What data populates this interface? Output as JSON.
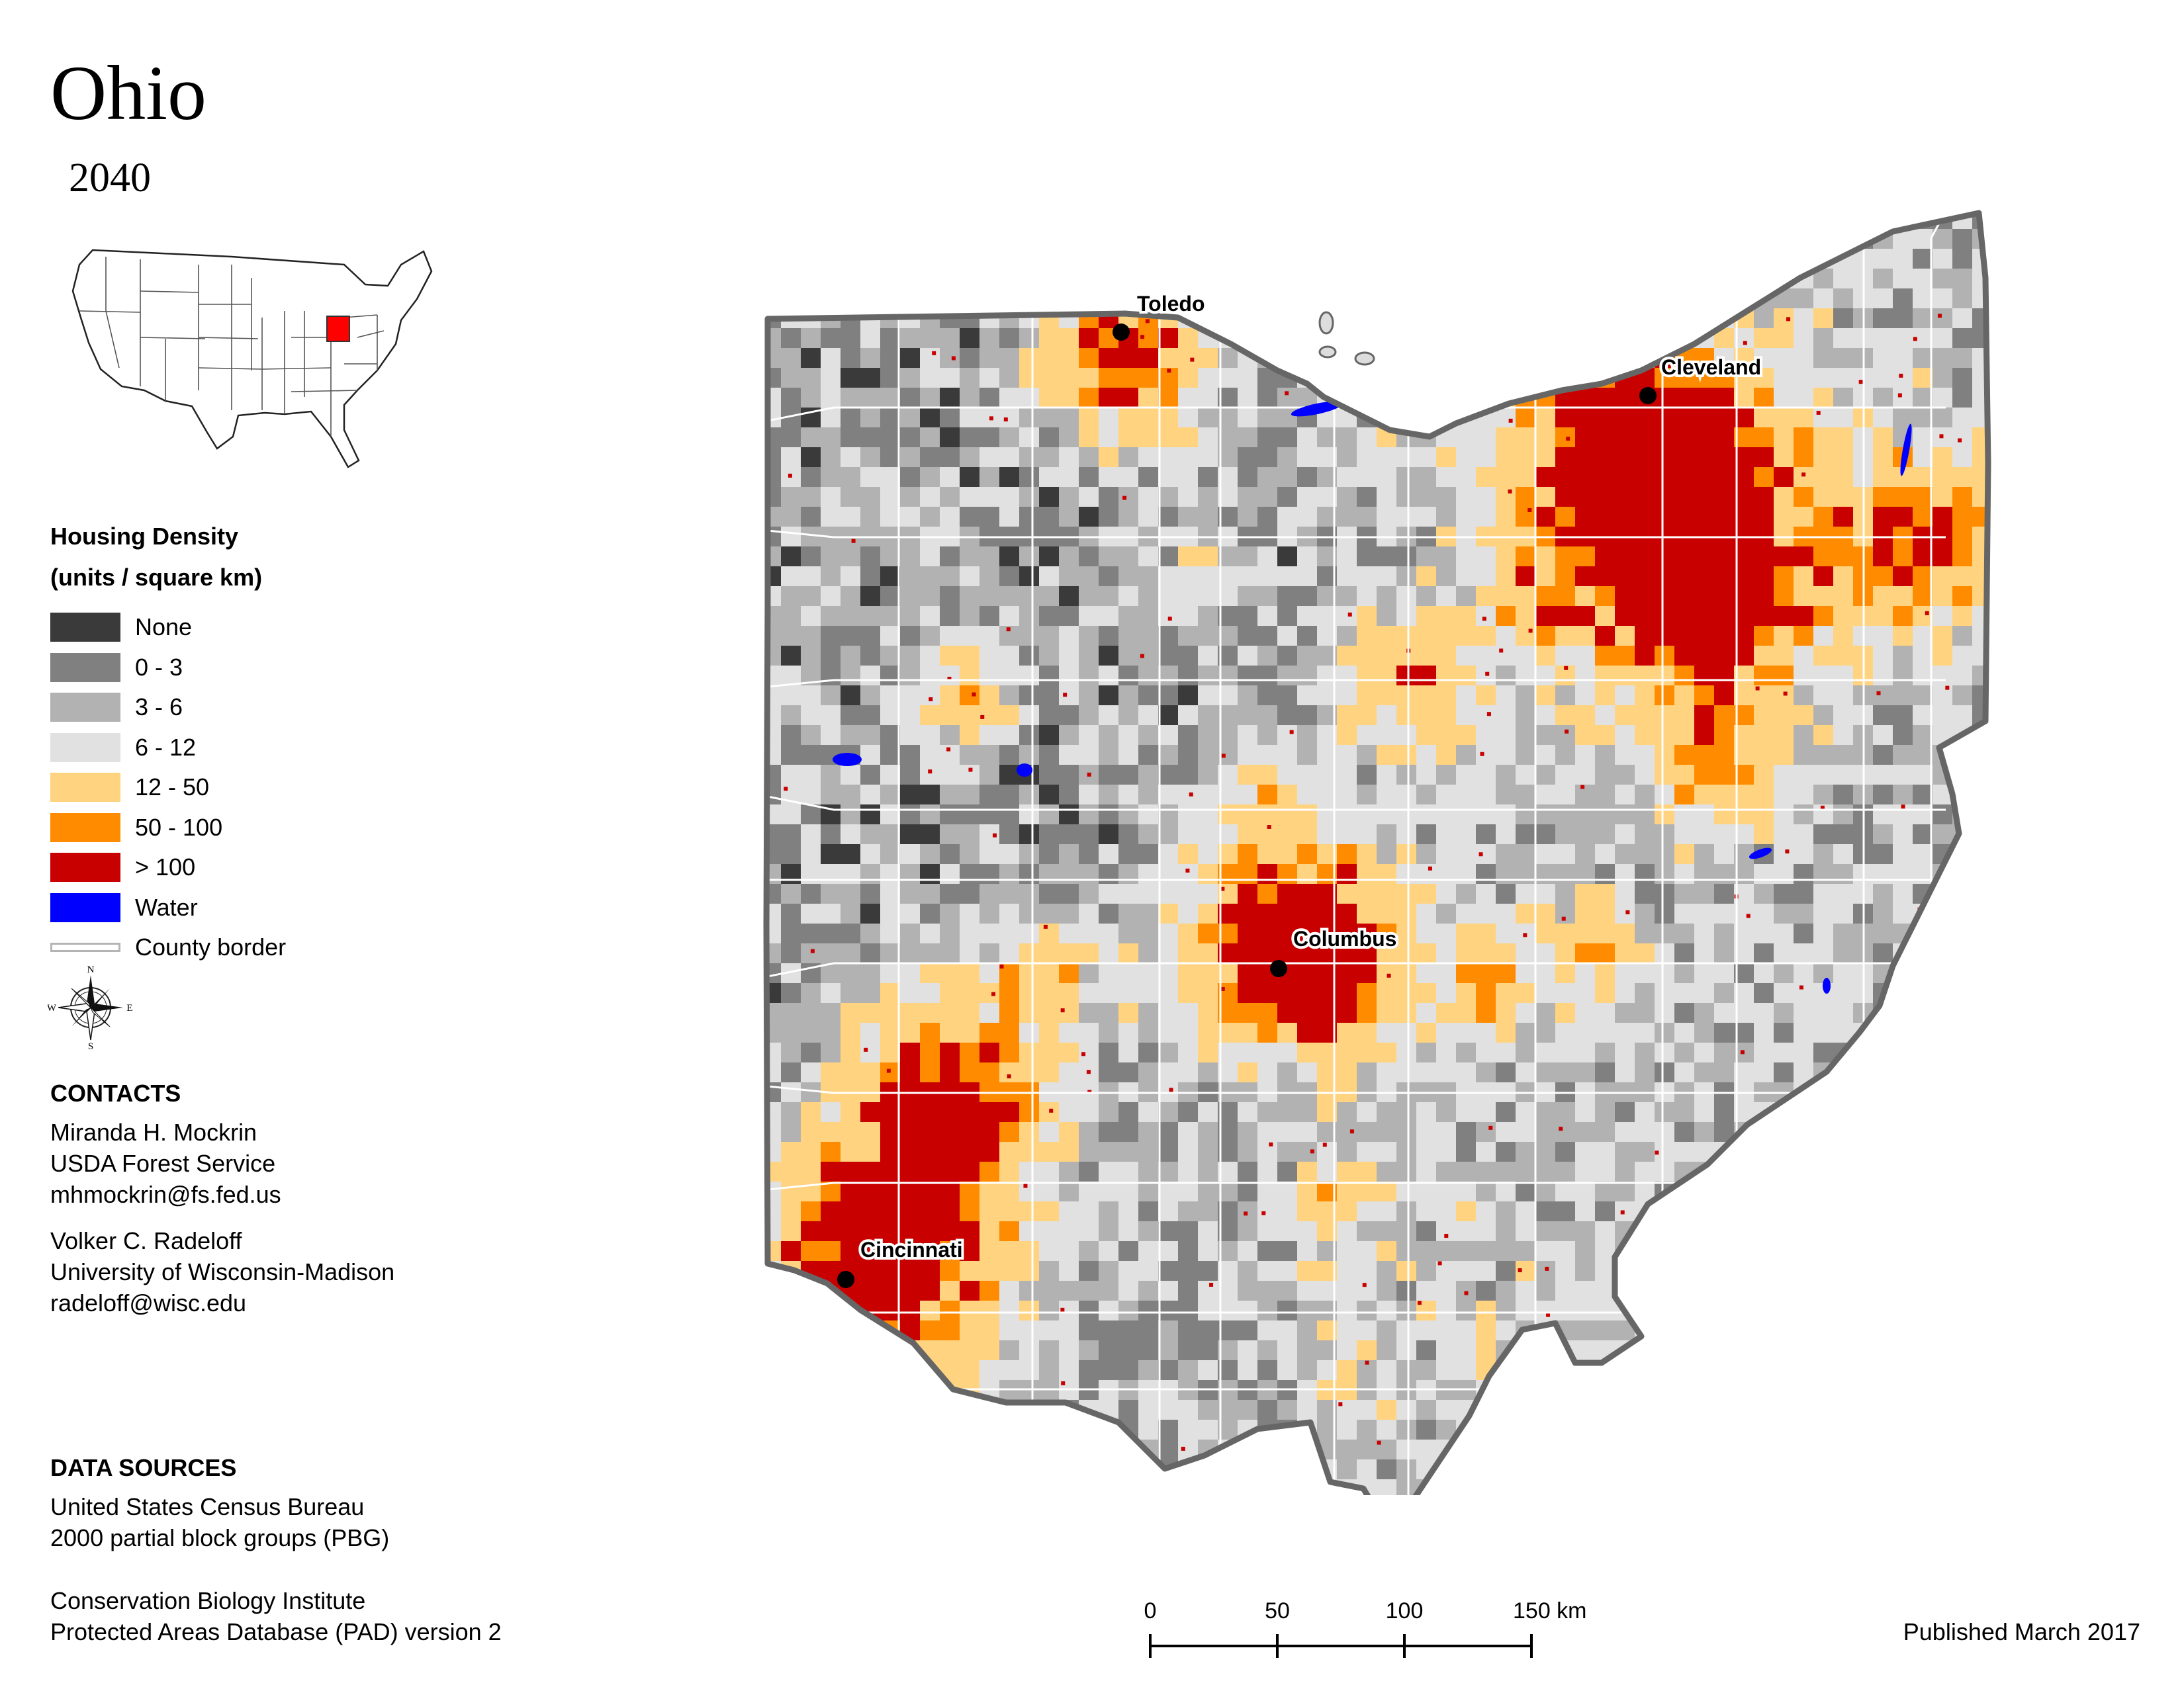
{
  "title": "Ohio",
  "subtitle": "2040",
  "legend": {
    "title_line1": "Housing Density",
    "title_line2": "(units / square km)",
    "items": [
      {
        "label": "None",
        "color": "#3a3a3a"
      },
      {
        "label": "0 - 3",
        "color": "#808080"
      },
      {
        "label": "3 - 6",
        "color": "#b2b2b2"
      },
      {
        "label": "6 - 12",
        "color": "#e1e1e1"
      },
      {
        "label": "12 - 50",
        "color": "#ffd37f"
      },
      {
        "label": "50 - 100",
        "color": "#ff8c00"
      },
      {
        "label": "> 100",
        "color": "#c80000"
      },
      {
        "label": "Water",
        "color": "#0000ff"
      },
      {
        "label": "County border",
        "color": "#b4b4b4"
      }
    ]
  },
  "compass": {
    "n": "N",
    "s": "S",
    "e": "E",
    "w": "W"
  },
  "contacts": {
    "heading": "CONTACTS",
    "people": [
      {
        "name": "Miranda H. Mockrin",
        "org": "USDA Forest Service",
        "email": "mhmockrin@fs.fed.us"
      },
      {
        "name": "Volker C. Radeloff",
        "org": "University of Wisconsin-Madison",
        "email": "radeloff@wisc.edu"
      }
    ]
  },
  "data_sources": {
    "heading": "DATA SOURCES",
    "sources": [
      {
        "line1": "United States Census Bureau",
        "line2": "2000 partial block groups (PBG)"
      },
      {
        "line1": "Conservation Biology Institute",
        "line2": "Protected Areas Database (PAD) version 2"
      }
    ]
  },
  "cities": [
    "Toledo",
    "Cleveland",
    "Columbus",
    "Cincinnati"
  ],
  "scale": {
    "ticks": [
      "0",
      "50",
      "100",
      "150 km"
    ]
  },
  "published": "Published March 2017",
  "inset": {
    "highlight_state": "Ohio",
    "highlight_color": "#ff0000"
  }
}
